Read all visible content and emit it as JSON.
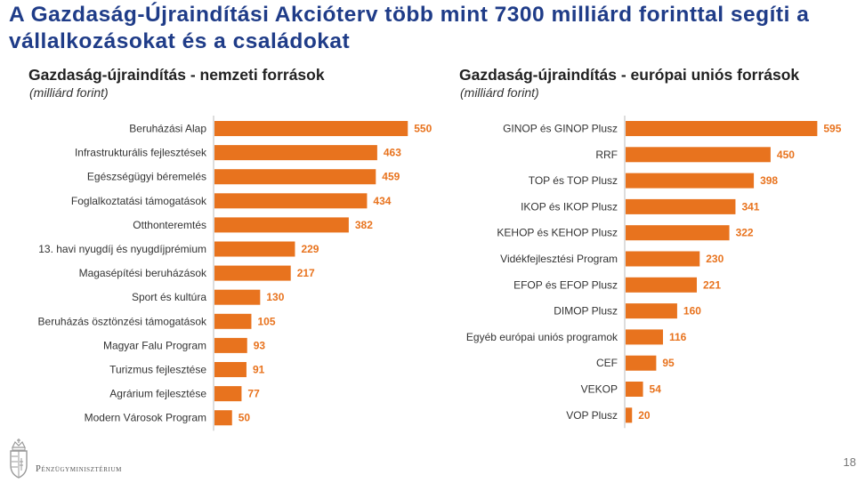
{
  "title": "A Gazdaság-Újraindítási Akcióterv több mint 7300 milliárd forinttal segíti a vállalkozásokat és a családokat",
  "footer": {
    "ministry": "Pénzügyminisztérium",
    "page_number": "18"
  },
  "colors": {
    "title": "#1f3c88",
    "bar": "#e8731e",
    "value_label": "#e8731e",
    "axis": "#bbbbbb"
  },
  "chart_data": [
    {
      "type": "bar",
      "orientation": "horizontal",
      "title": "Gazdaság-újraindítás - nemzeti források",
      "unit": "(milliárd forint)",
      "categories": [
        "Beruházási Alap",
        "Infrastrukturális fejlesztések",
        "Egészségügyi béremelés",
        "Foglalkoztatási támogatások",
        "Otthonteremtés",
        "13. havi nyugdíj és nyugdíjprémium",
        "Magasépítési beruházások",
        "Sport és kultúra",
        "Beruházás ösztönzési támogatások",
        "Magyar Falu Program",
        "Turizmus fejlesztése",
        "Agrárium fejlesztése",
        "Modern Városok Program"
      ],
      "values": [
        550,
        463,
        459,
        434,
        382,
        229,
        217,
        130,
        105,
        93,
        91,
        77,
        50
      ],
      "data_labels": true
    },
    {
      "type": "bar",
      "orientation": "horizontal",
      "title": "Gazdaság-újraindítás - európai uniós források",
      "unit": "(milliárd forint)",
      "categories": [
        "GINOP és GINOP Plusz",
        "RRF",
        "TOP és TOP Plusz",
        "IKOP és IKOP Plusz",
        "KEHOP és KEHOP Plusz",
        "Vidékfejlesztési Program",
        "EFOP és EFOP Plusz",
        "DIMOP Plusz",
        "Egyéb európai uniós programok",
        "CEF",
        "VEKOP",
        "VOP Plusz"
      ],
      "values": [
        595,
        450,
        398,
        341,
        322,
        230,
        221,
        160,
        116,
        95,
        54,
        20
      ],
      "data_labels": true
    }
  ]
}
